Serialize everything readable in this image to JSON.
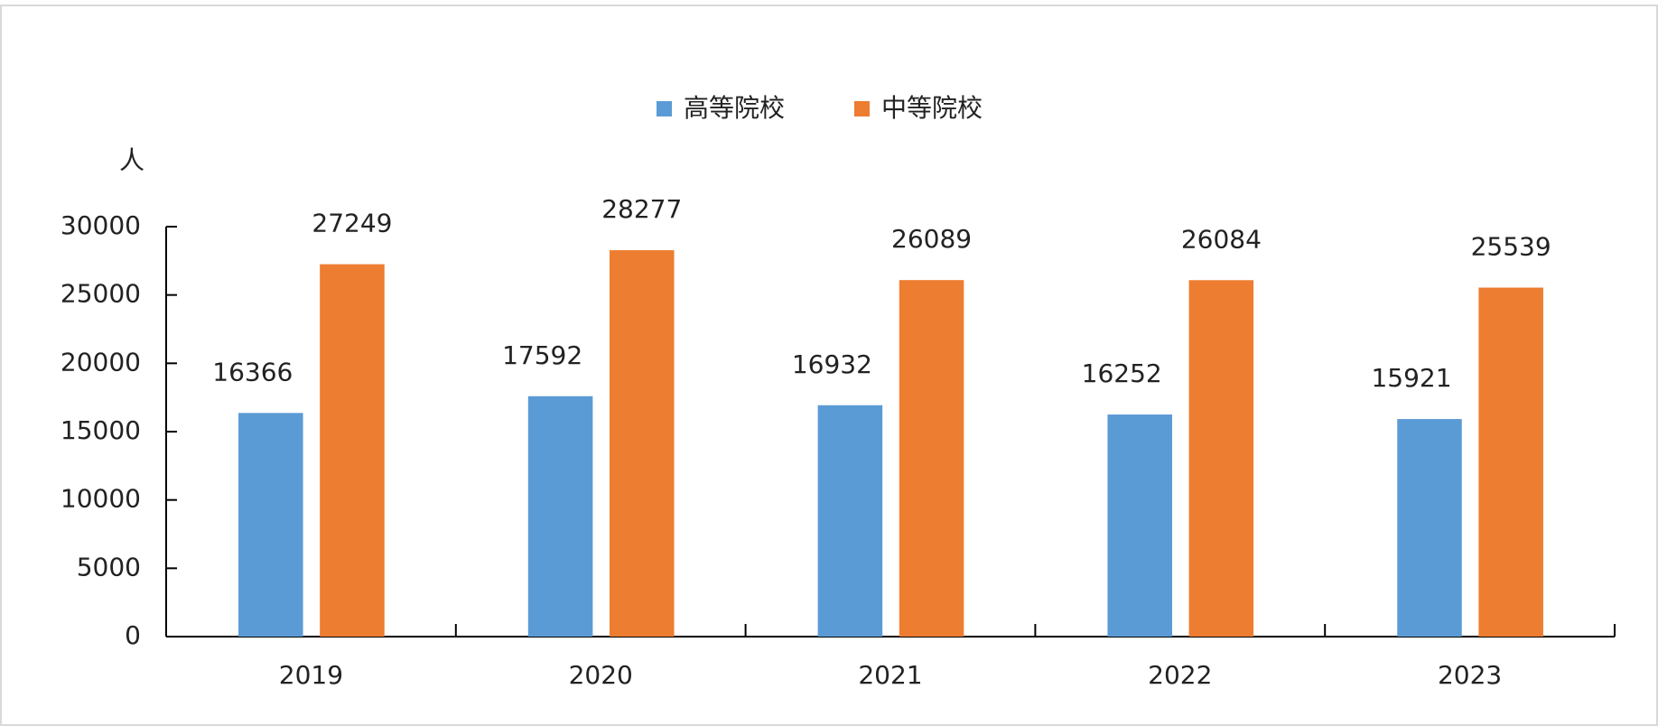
{
  "chart_data": {
    "type": "bar",
    "y_label": "人",
    "categories": [
      "2019",
      "2020",
      "2021",
      "2022",
      "2023"
    ],
    "series": [
      {
        "name": "高等院校",
        "color": "#5b9bd5",
        "values": [
          16366,
          17592,
          16932,
          16252,
          15921
        ]
      },
      {
        "name": "中等院校",
        "color": "#ed7d31",
        "values": [
          27249,
          28277,
          26089,
          26084,
          25539
        ]
      }
    ],
    "ylim": [
      0,
      30000
    ],
    "yticks": [
      0,
      5000,
      10000,
      15000,
      20000,
      25000,
      30000
    ],
    "legend": "top"
  }
}
